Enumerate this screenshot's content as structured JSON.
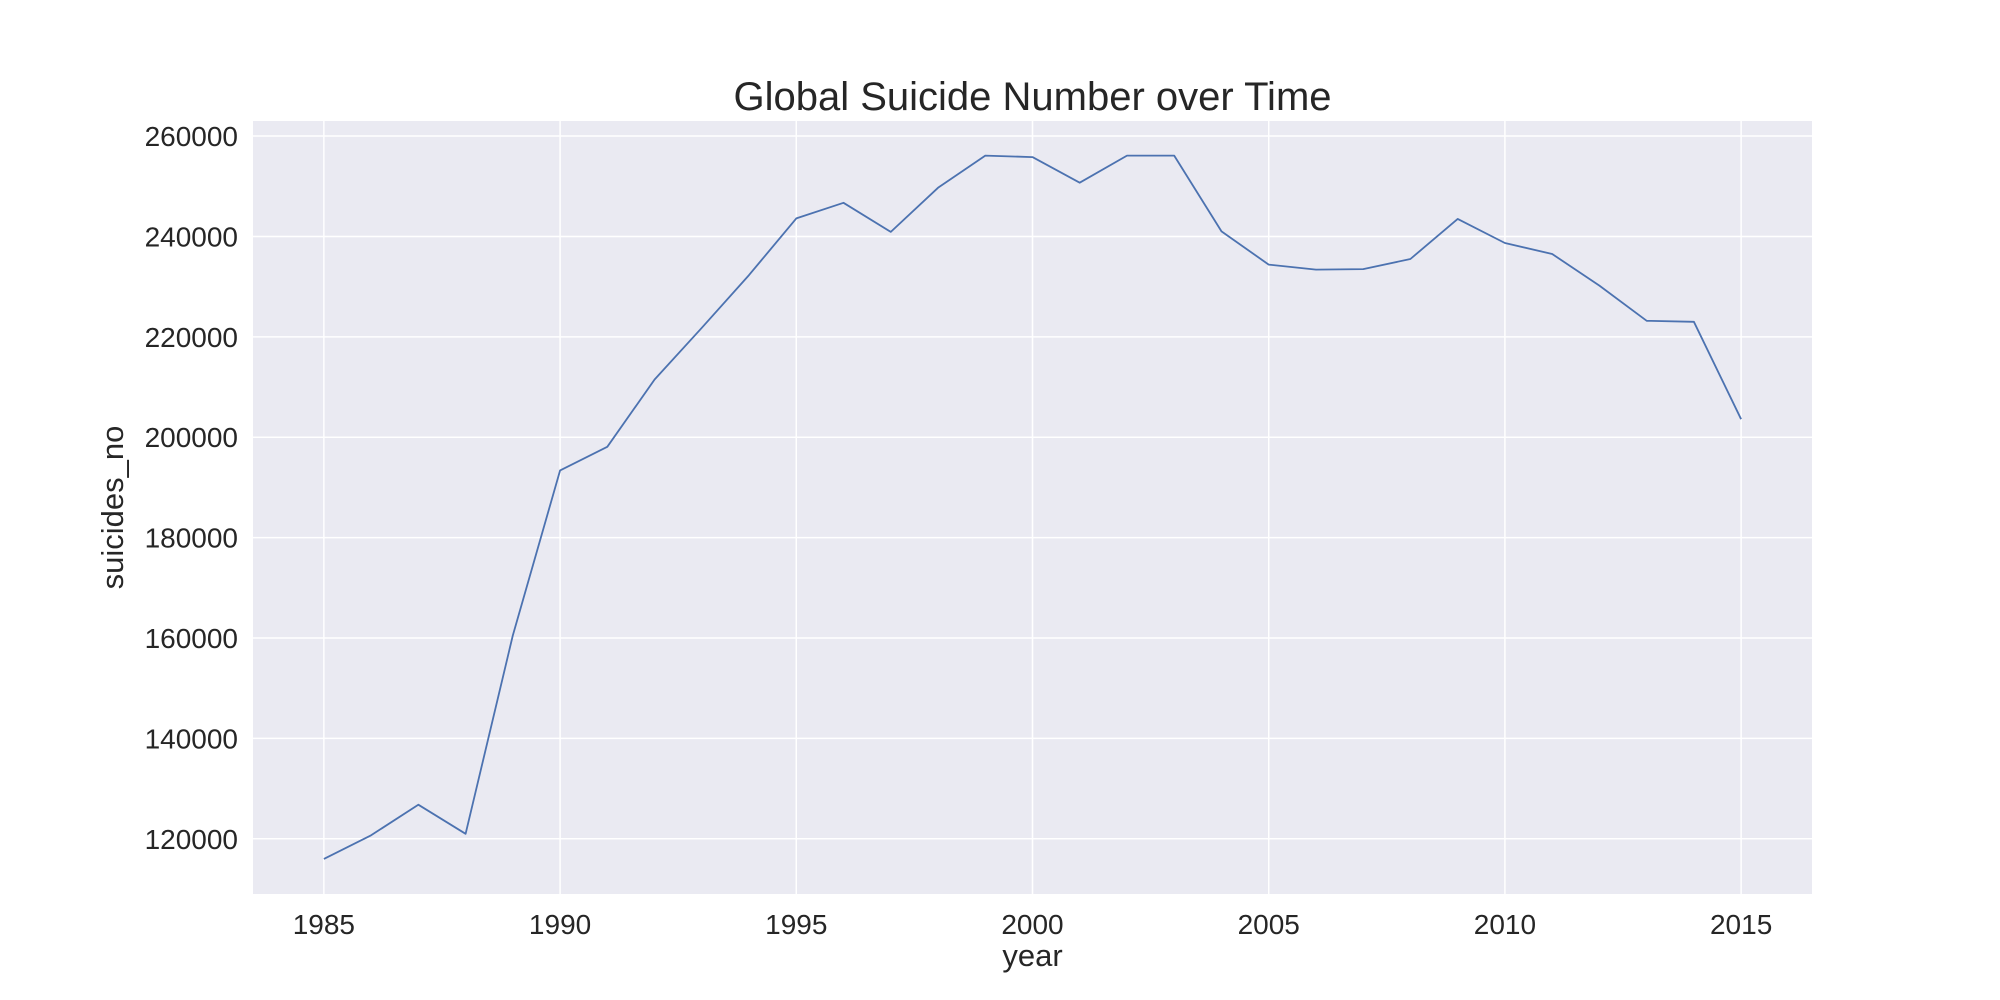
{
  "colors": {
    "background": "#ffffff",
    "plot_background": "#eaeaf2",
    "grid": "#ffffff",
    "line": "#4c72b0",
    "text": "#262626"
  },
  "chart_data": {
    "type": "line",
    "title": "Global Suicide Number over Time",
    "xlabel": "year",
    "ylabel": "suicides_no",
    "xlim": [
      1983.5,
      2016.5
    ],
    "ylim": [
      109000,
      263000
    ],
    "xticks": [
      1985,
      1990,
      1995,
      2000,
      2005,
      2010,
      2015
    ],
    "yticks": [
      120000,
      140000,
      160000,
      180000,
      200000,
      220000,
      240000,
      260000
    ],
    "grid": true,
    "legend": false,
    "series": [
      {
        "x": [
          1985,
          1986,
          1987,
          1988,
          1989,
          1990,
          1991,
          1992,
          1993,
          1994,
          1995,
          1996,
          1997,
          1998,
          1999,
          2000,
          2001,
          2002,
          2003,
          2004,
          2005,
          2006,
          2007,
          2008,
          2009,
          2010,
          2011,
          2012,
          2013,
          2014,
          2015
        ],
        "y": [
          116000,
          120700,
          126800,
          121000,
          160500,
          193400,
          198100,
          211500,
          221800,
          232300,
          243600,
          246700,
          240900,
          249700,
          256100,
          255800,
          250700,
          256100,
          256100,
          241000,
          234400,
          233400,
          233500,
          235500,
          243500,
          238700,
          236500,
          230200,
          223200,
          223000,
          203600
        ]
      }
    ]
  }
}
